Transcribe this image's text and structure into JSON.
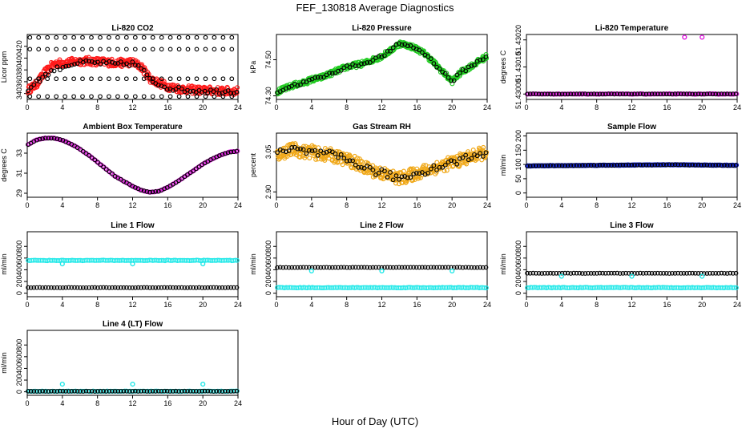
{
  "figure": {
    "title": "FEF_130818  Average Diagnostics",
    "xlabel": "Hour of Day (UTC)"
  },
  "colors": {
    "black": "#000000",
    "red": "#ff1a1a",
    "green": "#22cc22",
    "magenta": "#e020e0",
    "orange": "#f0a818",
    "blue": "#1a2bdc",
    "cyan": "#22e8e8"
  },
  "chart_data": [
    {
      "type": "scatter",
      "title": "Li-820 CO2",
      "ylabel": "Licor ppm",
      "xlim": [
        0,
        24
      ],
      "ylim": [
        330,
        440
      ],
      "xticks": [
        "0",
        "4",
        "8",
        "12",
        "16",
        "20",
        "24"
      ],
      "yticks": [
        "340",
        "360",
        "380",
        "400",
        "420"
      ],
      "series": [
        {
          "color": "red",
          "values_by_hour": {
            "x": [
              0,
              1,
              2,
              3,
              4,
              5,
              6,
              7,
              8,
              9,
              10,
              11,
              12,
              13,
              14,
              15,
              16,
              17,
              18,
              19,
              20,
              21,
              22,
              23,
              24
            ],
            "y": [
              345,
              355,
              375,
              390,
              392,
              393,
              395,
              395,
              394,
              393,
              392,
              392,
              393,
              385,
              365,
              358,
              352,
              349,
              347,
              346,
              345,
              345,
              344,
              344,
              344
            ]
          }
        },
        {
          "color": "black",
          "values_by_hour": {
            "x": [
              0,
              1,
              2,
              3,
              4,
              5,
              6,
              7,
              8,
              9,
              10,
              11,
              12,
              13,
              14,
              15,
              16,
              17,
              18,
              19,
              20,
              21,
              22,
              23,
              24
            ],
            "y": [
              345,
              360,
              370,
              380,
              385,
              390,
              392,
              393,
              392,
              391,
              390,
              390,
              391,
              383,
              362,
              356,
              350,
              348,
              346,
              345,
              345,
              344,
              344,
              344,
              344
            ]
          }
        }
      ],
      "outliers_y": [
        435,
        335,
        415,
        365
      ]
    },
    {
      "type": "scatter",
      "title": "Li-820 Pressure",
      "ylabel": "kPa",
      "xlim": [
        0,
        24
      ],
      "ylim": [
        74.28,
        74.64
      ],
      "xticks": [
        "0",
        "4",
        "8",
        "12",
        "16",
        "20",
        "24"
      ],
      "yticks": [
        "74.30",
        "74.50"
      ],
      "series": [
        {
          "color": "green",
          "values_by_hour": {
            "x": [
              0,
              1,
              2,
              3,
              4,
              5,
              6,
              7,
              8,
              9,
              10,
              11,
              12,
              13,
              14,
              15,
              16,
              17,
              18,
              19,
              20,
              21,
              22,
              23,
              24
            ],
            "y": [
              74.32,
              74.34,
              74.36,
              74.37,
              74.39,
              74.4,
              74.42,
              74.44,
              74.46,
              74.47,
              74.48,
              74.5,
              74.52,
              74.55,
              74.59,
              74.58,
              74.56,
              74.53,
              74.48,
              74.43,
              74.38,
              74.43,
              74.46,
              74.49,
              74.52
            ]
          }
        },
        {
          "color": "black",
          "values_by_hour": {
            "x": [
              0,
              1,
              2,
              3,
              4,
              5,
              6,
              7,
              8,
              9,
              10,
              11,
              12,
              13,
              14,
              15,
              16,
              17,
              18,
              19,
              20,
              21,
              22,
              23,
              24
            ],
            "y": [
              74.32,
              74.34,
              74.36,
              74.37,
              74.39,
              74.4,
              74.42,
              74.44,
              74.46,
              74.47,
              74.48,
              74.5,
              74.52,
              74.55,
              74.59,
              74.58,
              74.56,
              74.53,
              74.48,
              74.43,
              74.38,
              74.43,
              74.46,
              74.49,
              74.52
            ]
          }
        }
      ]
    },
    {
      "type": "scatter",
      "title": "Li-820 Temperature",
      "ylabel": "degrees C",
      "xlim": [
        0,
        24
      ],
      "ylim": [
        51.42998,
        51.43022
      ],
      "xticks": [
        "0",
        "4",
        "8",
        "12",
        "16",
        "20",
        "24"
      ],
      "yticks": [
        "51.43000",
        "51.43010",
        "51.43020"
      ],
      "series": [
        {
          "color": "magenta",
          "values_by_hour": {
            "x": [
              0,
              24
            ],
            "y": [
              51.43,
              51.43
            ]
          }
        },
        {
          "color": "black",
          "values_by_hour": {
            "x": [
              0,
              24
            ],
            "y": [
              51.43,
              51.43
            ]
          }
        }
      ],
      "highlights": [
        {
          "x": 18,
          "y": 51.43021
        },
        {
          "x": 20,
          "y": 51.43021
        }
      ]
    },
    {
      "type": "line",
      "title": "Ambient Box Temperature",
      "ylabel": "degrees C",
      "xlim": [
        0,
        24
      ],
      "ylim": [
        28.6,
        35
      ],
      "xticks": [
        "0",
        "4",
        "8",
        "12",
        "16",
        "20",
        "24"
      ],
      "yticks": [
        "29",
        "31",
        "33"
      ],
      "series": [
        {
          "color": "magenta",
          "values_by_hour": {
            "x": [
              0,
              1,
              2,
              3,
              4,
              5,
              6,
              7,
              8,
              9,
              10,
              11,
              12,
              13,
              14,
              15,
              16,
              17,
              18,
              19,
              20,
              21,
              22,
              23,
              24
            ],
            "y": [
              33.8,
              34.3,
              34.5,
              34.5,
              34.3,
              33.9,
              33.4,
              32.8,
              32.1,
              31.4,
              30.7,
              30.2,
              29.7,
              29.3,
              29.1,
              29.2,
              29.6,
              30.1,
              30.7,
              31.3,
              31.9,
              32.4,
              32.8,
              33.1,
              33.2
            ]
          }
        },
        {
          "color": "black",
          "values_by_hour": {
            "x": [
              0,
              1,
              2,
              3,
              4,
              5,
              6,
              7,
              8,
              9,
              10,
              11,
              12,
              13,
              14,
              15,
              16,
              17,
              18,
              19,
              20,
              21,
              22,
              23,
              24
            ],
            "y": [
              33.8,
              34.3,
              34.5,
              34.5,
              34.3,
              33.9,
              33.4,
              32.8,
              32.1,
              31.4,
              30.7,
              30.2,
              29.7,
              29.3,
              29.1,
              29.2,
              29.6,
              30.1,
              30.7,
              31.3,
              31.9,
              32.4,
              32.8,
              33.1,
              33.2
            ]
          }
        }
      ]
    },
    {
      "type": "scatter",
      "title": "Gas Stream RH",
      "ylabel": "percent",
      "xlim": [
        0,
        24
      ],
      "ylim": [
        2.88,
        3.12
      ],
      "xticks": [
        "0",
        "4",
        "8",
        "12",
        "16",
        "20",
        "24"
      ],
      "yticks": [
        "2.90",
        "3.05"
      ],
      "series": [
        {
          "color": "orange",
          "values_by_hour": {
            "x": [
              0,
              1,
              2,
              3,
              4,
              5,
              6,
              7,
              8,
              9,
              10,
              11,
              12,
              13,
              14,
              15,
              16,
              17,
              18,
              19,
              20,
              21,
              22,
              23,
              24
            ],
            "y": [
              3.04,
              3.05,
              3.06,
              3.05,
              3.05,
              3.04,
              3.04,
              3.03,
              3.02,
              3.01,
              2.99,
              2.98,
              2.97,
              2.96,
              2.95,
              2.96,
              2.97,
              2.98,
              2.99,
              3.0,
              3.01,
              3.02,
              3.03,
              3.04,
              3.05
            ]
          }
        },
        {
          "color": "black",
          "values_by_hour": {
            "x": [
              0,
              1,
              2,
              3,
              4,
              5,
              6,
              7,
              8,
              9,
              10,
              11,
              12,
              13,
              14,
              15,
              16,
              17,
              18,
              19,
              20,
              21,
              22,
              23,
              24
            ],
            "y": [
              3.04,
              3.05,
              3.06,
              3.05,
              3.05,
              3.04,
              3.04,
              3.03,
              3.02,
              3.01,
              2.99,
              2.98,
              2.97,
              2.96,
              2.95,
              2.96,
              2.97,
              2.98,
              2.99,
              3.0,
              3.01,
              3.02,
              3.03,
              3.04,
              3.05
            ]
          }
        }
      ]
    },
    {
      "type": "scatter",
      "title": "Sample Flow",
      "ylabel": "ml/min",
      "xlim": [
        0,
        24
      ],
      "ylim": [
        -15,
        210
      ],
      "xticks": [
        "0",
        "4",
        "8",
        "12",
        "16",
        "20",
        "24"
      ],
      "yticks": [
        "0",
        "50",
        "100",
        "150",
        "200"
      ],
      "series": [
        {
          "color": "blue",
          "values_by_hour": {
            "x": [
              0,
              4,
              8,
              12,
              16,
              20,
              24
            ],
            "y": [
              95,
              96,
              97,
              98,
              99,
              98,
              97
            ]
          }
        },
        {
          "color": "black",
          "values_by_hour": {
            "x": [
              0,
              4,
              8,
              12,
              16,
              20,
              24
            ],
            "y": [
              95,
              96,
              97,
              98,
              99,
              98,
              97
            ]
          }
        }
      ]
    },
    {
      "type": "scatter",
      "title": "Line 1 Flow",
      "ylabel": "ml/min",
      "xlim": [
        0,
        24
      ],
      "ylim": [
        -60,
        1050
      ],
      "xticks": [
        "0",
        "4",
        "8",
        "12",
        "16",
        "20",
        "24"
      ],
      "yticks": [
        "0",
        "200",
        "400",
        "600",
        "800"
      ],
      "series": [
        {
          "color": "cyan",
          "values_by_hour": {
            "x": [
              0,
              24
            ],
            "y": [
              560,
              560
            ]
          }
        },
        {
          "color": "black",
          "values_by_hour": {
            "x": [
              0,
              24
            ],
            "y": [
              95,
              95
            ]
          }
        }
      ],
      "spikes": [
        {
          "x": 4,
          "y": 500
        },
        {
          "x": 12,
          "y": 500
        },
        {
          "x": 20,
          "y": 500
        }
      ]
    },
    {
      "type": "scatter",
      "title": "Line 2 Flow",
      "ylabel": "ml/min",
      "xlim": [
        0,
        24
      ],
      "ylim": [
        -60,
        1050
      ],
      "xticks": [
        "0",
        "4",
        "8",
        "12",
        "16",
        "20",
        "24"
      ],
      "yticks": [
        "0",
        "200",
        "400",
        "600",
        "800"
      ],
      "series": [
        {
          "color": "black",
          "values_by_hour": {
            "x": [
              0,
              24
            ],
            "y": [
              440,
              440
            ]
          }
        },
        {
          "color": "cyan",
          "values_by_hour": {
            "x": [
              0,
              24
            ],
            "y": [
              95,
              95
            ]
          }
        }
      ],
      "spikes": [
        {
          "x": 4,
          "y": 380
        },
        {
          "x": 12,
          "y": 380
        },
        {
          "x": 20,
          "y": 380
        }
      ]
    },
    {
      "type": "scatter",
      "title": "Line 3 Flow",
      "ylabel": "ml/min",
      "xlim": [
        0,
        24
      ],
      "ylim": [
        -60,
        1050
      ],
      "xticks": [
        "0",
        "4",
        "8",
        "12",
        "16",
        "20",
        "24"
      ],
      "yticks": [
        "0",
        "200",
        "400",
        "600",
        "800"
      ],
      "series": [
        {
          "color": "black",
          "values_by_hour": {
            "x": [
              0,
              24
            ],
            "y": [
              340,
              340
            ]
          }
        },
        {
          "color": "cyan",
          "values_by_hour": {
            "x": [
              0,
              24
            ],
            "y": [
              95,
              95
            ]
          }
        }
      ],
      "spikes": [
        {
          "x": 4,
          "y": 290
        },
        {
          "x": 12,
          "y": 290
        },
        {
          "x": 20,
          "y": 290
        }
      ]
    },
    {
      "type": "scatter",
      "title": "Line 4 (LT) Flow",
      "ylabel": "ml/min",
      "xlim": [
        0,
        24
      ],
      "ylim": [
        -60,
        1050
      ],
      "xticks": [
        "0",
        "4",
        "8",
        "12",
        "16",
        "20",
        "24"
      ],
      "yticks": [
        "0",
        "200",
        "400",
        "600",
        "800"
      ],
      "series": [
        {
          "color": "cyan",
          "values_by_hour": {
            "x": [
              0,
              24
            ],
            "y": [
              10,
              10
            ]
          }
        },
        {
          "color": "black",
          "values_by_hour": {
            "x": [
              0,
              24
            ],
            "y": [
              10,
              10
            ]
          }
        }
      ],
      "spikes": [
        {
          "x": 4,
          "y": 130
        },
        {
          "x": 12,
          "y": 130
        },
        {
          "x": 20,
          "y": 130
        }
      ]
    }
  ]
}
